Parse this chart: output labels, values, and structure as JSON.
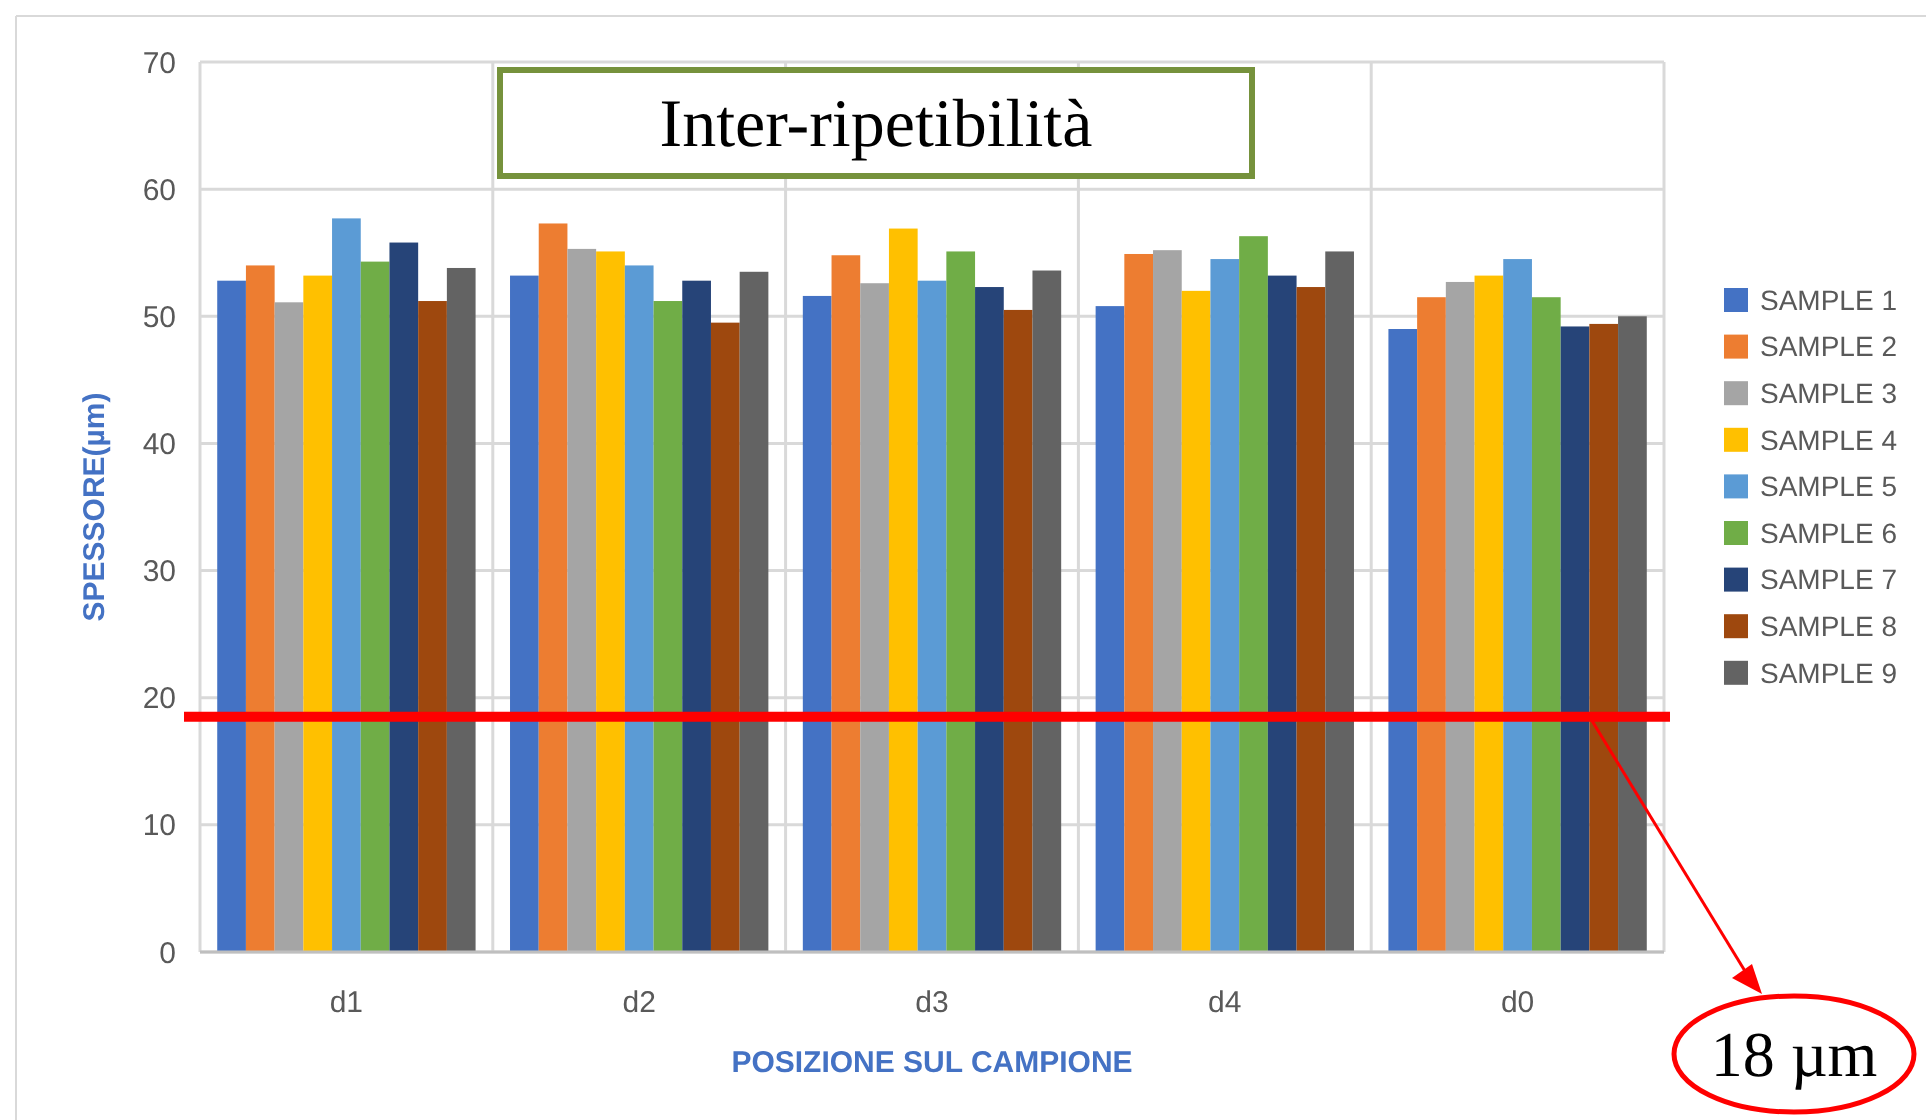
{
  "chart_data": {
    "type": "bar",
    "title": "Inter-ripetibilità",
    "xlabel": "POSIZIONE SUL CAMPIONE",
    "ylabel": "SPESSORE(µm)",
    "categories": [
      "d1",
      "d2",
      "d3",
      "d4",
      "d0"
    ],
    "series": [
      {
        "name": "SAMPLE 1",
        "color": "#4472c4",
        "values": [
          52.8,
          53.2,
          51.6,
          50.8,
          49.0
        ]
      },
      {
        "name": "SAMPLE 2",
        "color": "#ed7d31",
        "values": [
          54.0,
          57.3,
          54.8,
          54.9,
          51.5
        ]
      },
      {
        "name": "SAMPLE 3",
        "color": "#a5a5a5",
        "values": [
          51.1,
          55.3,
          52.6,
          55.2,
          52.7
        ]
      },
      {
        "name": "SAMPLE 4",
        "color": "#ffc000",
        "values": [
          53.2,
          55.1,
          56.9,
          52.0,
          53.2
        ]
      },
      {
        "name": "SAMPLE 5",
        "color": "#5b9bd5",
        "values": [
          57.7,
          54.0,
          52.8,
          54.5,
          54.5
        ]
      },
      {
        "name": "SAMPLE 6",
        "color": "#70ad47",
        "values": [
          54.3,
          51.2,
          55.1,
          56.3,
          51.5
        ]
      },
      {
        "name": "SAMPLE 7",
        "color": "#264478",
        "values": [
          55.8,
          52.8,
          52.3,
          53.2,
          49.2
        ]
      },
      {
        "name": "SAMPLE 8",
        "color": "#9e480e",
        "values": [
          51.2,
          49.5,
          50.5,
          52.3,
          49.4
        ]
      },
      {
        "name": "SAMPLE 9",
        "color": "#636363",
        "values": [
          53.8,
          53.5,
          53.6,
          55.1,
          50.0
        ]
      }
    ],
    "ylim": [
      0,
      70
    ],
    "yticks": [
      0,
      10,
      20,
      30,
      40,
      50,
      60,
      70
    ],
    "grid": true,
    "legend": "right",
    "ref_lines": [
      {
        "axis": "y",
        "value": 18.5,
        "label": "18 µm",
        "color": "#ff0000"
      }
    ]
  }
}
